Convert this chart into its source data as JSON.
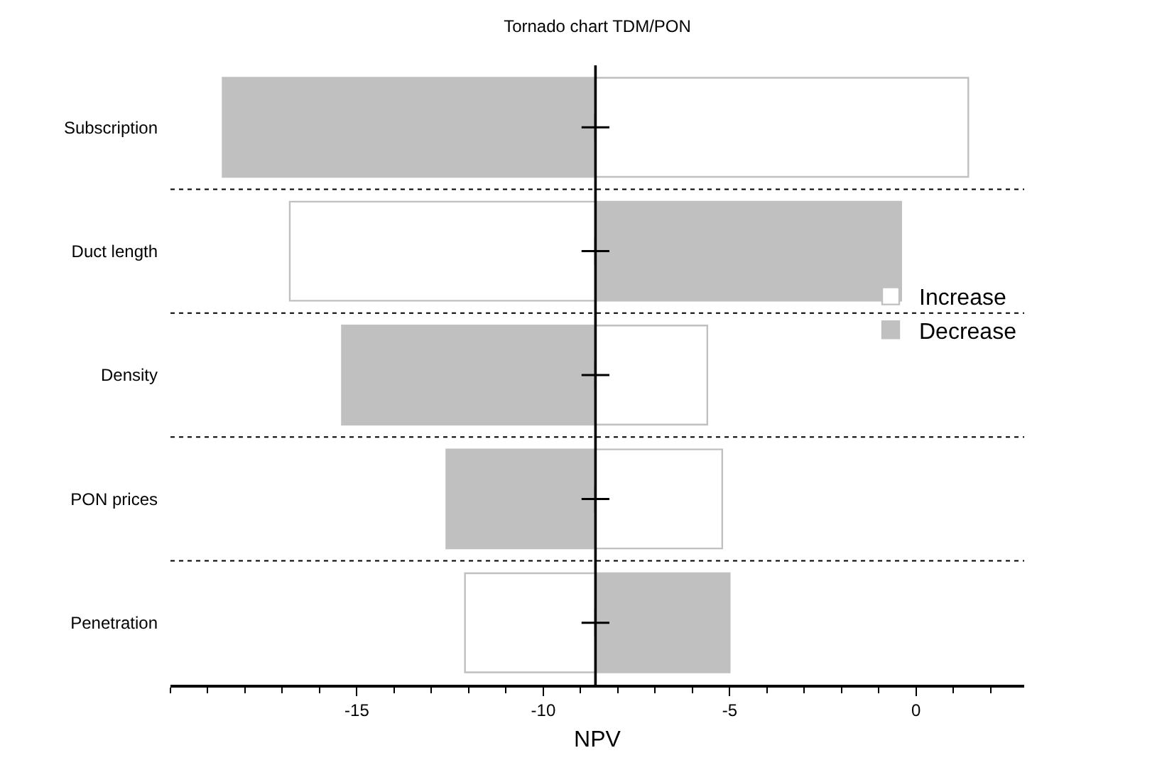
{
  "chart_data": {
    "type": "bar",
    "orientation": "horizontal",
    "title": "Tornado chart TDM/PON",
    "xlabel": "NPV",
    "categories": [
      "Subscription",
      "Duct length",
      "Density",
      "PON prices",
      "Penetration"
    ],
    "series": [
      {
        "name": "Increase",
        "color": "#ffffff",
        "values": [
          10.0,
          -8.2,
          3.0,
          3.4,
          -3.5
        ],
        "base": [
          -8.6,
          -8.6,
          -8.6,
          -8.6,
          -8.6
        ]
      },
      {
        "name": "Decrease",
        "color": "#c0c0c0",
        "values": [
          -10.0,
          8.2,
          -6.8,
          -4.0,
          3.6
        ],
        "base": [
          -8.6,
          -8.6,
          -8.6,
          -8.6,
          -8.6
        ]
      },
      {
        "type": "scatter",
        "color": "#000000",
        "marker": "cross",
        "values": [
          -8.6,
          -8.6,
          -8.6,
          -8.6,
          -8.6
        ]
      }
    ],
    "xlim": [
      -20,
      2.9
    ],
    "xticks": [
      -15,
      -10,
      -5,
      0
    ],
    "ref_lines": [
      {
        "axis": "x",
        "value": -8.6,
        "color": "#000000"
      }
    ],
    "grid": "y",
    "legend": "right"
  }
}
